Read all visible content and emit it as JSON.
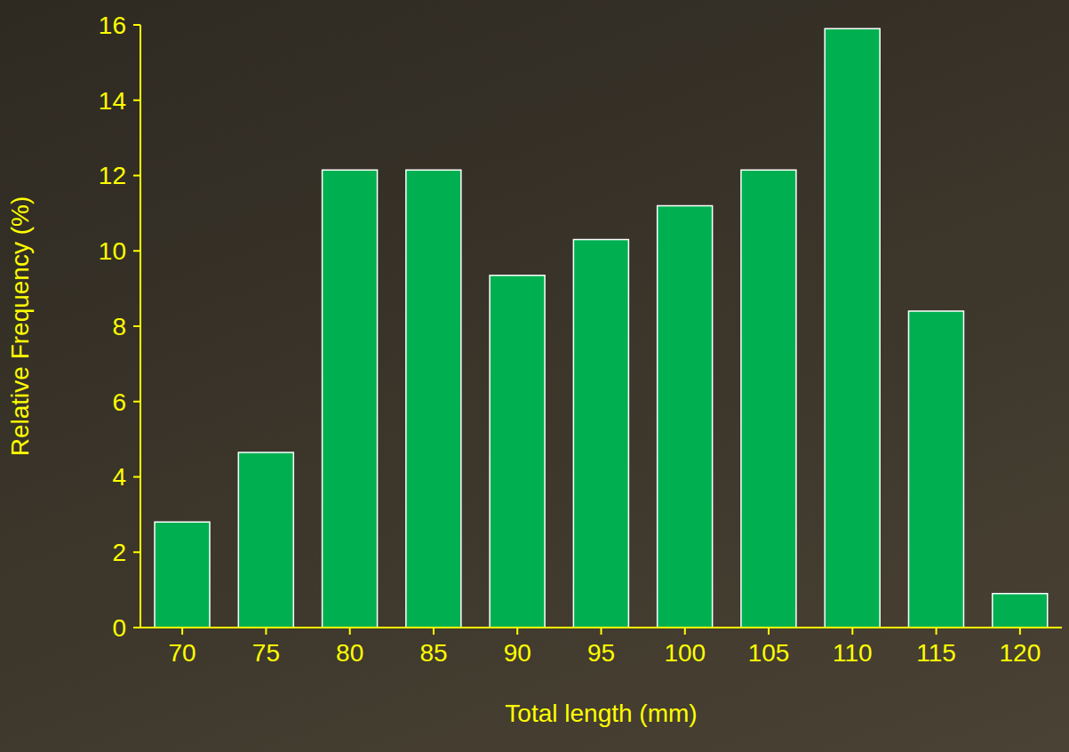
{
  "chart_data": {
    "type": "bar",
    "x_label": "Total length (mm)",
    "y_label": "Relative Frequency (%)",
    "categories": [
      "70",
      "75",
      "80",
      "85",
      "90",
      "95",
      "100",
      "105",
      "110",
      "115",
      "120"
    ],
    "values": [
      2.8,
      4.65,
      12.15,
      12.15,
      9.35,
      10.3,
      11.2,
      12.15,
      15.9,
      8.4,
      0.9
    ],
    "color": "#00b050",
    "ylim": [
      0,
      16
    ],
    "yticks": [
      0,
      2,
      4,
      6,
      8,
      10,
      12,
      14,
      16
    ],
    "grid": false
  }
}
